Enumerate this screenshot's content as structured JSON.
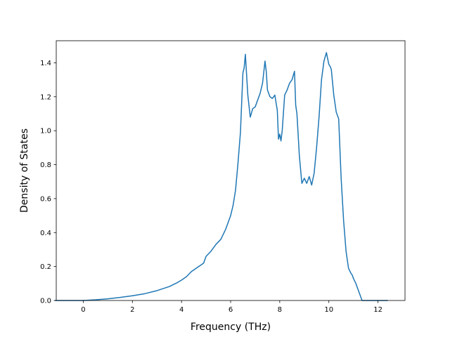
{
  "chart_data": {
    "type": "line",
    "title": "",
    "xlabel": "Frequency (THz)",
    "ylabel": "Density of States",
    "xlim": [
      -1.1,
      13.1
    ],
    "ylim": [
      0.0,
      1.53
    ],
    "xticks": [
      0,
      2,
      4,
      6,
      8,
      10,
      12
    ],
    "yticks": [
      0.0,
      0.2,
      0.4,
      0.6,
      0.8,
      1.0,
      1.2,
      1.4
    ],
    "grid": false,
    "line_color": "#1f77b4",
    "series": [
      {
        "x": [
          -1.15,
          0.0,
          0.5,
          1.0,
          1.5,
          2.0,
          2.5,
          3.0,
          3.5,
          3.8,
          4.0,
          4.2,
          4.3,
          4.4,
          4.6,
          4.8,
          4.9,
          5.0,
          5.2,
          5.4,
          5.6,
          5.8,
          5.9,
          6.0,
          6.1,
          6.2,
          6.3,
          6.4,
          6.5,
          6.55,
          6.6,
          6.7,
          6.8,
          6.9,
          7.0,
          7.2,
          7.3,
          7.4,
          7.45,
          7.5,
          7.6,
          7.7,
          7.8,
          7.9,
          7.95,
          8.0,
          8.05,
          8.1,
          8.2,
          8.3,
          8.4,
          8.5,
          8.6,
          8.65,
          8.7,
          8.8,
          8.9,
          9.0,
          9.1,
          9.2,
          9.3,
          9.4,
          9.5,
          9.6,
          9.7,
          9.8,
          9.9,
          10.0,
          10.05,
          10.1,
          10.2,
          10.3,
          10.4,
          10.5,
          10.6,
          10.7,
          10.8,
          10.9,
          10.95,
          11.0,
          11.1,
          11.2,
          11.3,
          11.35,
          11.4,
          11.6,
          12.0,
          12.4
        ],
        "y": [
          0.0,
          0.0,
          0.004,
          0.01,
          0.018,
          0.028,
          0.04,
          0.058,
          0.082,
          0.103,
          0.12,
          0.14,
          0.155,
          0.17,
          0.19,
          0.21,
          0.22,
          0.26,
          0.29,
          0.33,
          0.36,
          0.42,
          0.46,
          0.5,
          0.56,
          0.65,
          0.81,
          0.99,
          1.34,
          1.37,
          1.45,
          1.21,
          1.08,
          1.13,
          1.14,
          1.22,
          1.28,
          1.41,
          1.35,
          1.24,
          1.2,
          1.19,
          1.21,
          1.12,
          0.95,
          0.98,
          0.94,
          1.0,
          1.21,
          1.24,
          1.28,
          1.3,
          1.35,
          1.15,
          1.1,
          0.85,
          0.69,
          0.72,
          0.69,
          0.73,
          0.68,
          0.75,
          0.9,
          1.08,
          1.3,
          1.41,
          1.46,
          1.39,
          1.38,
          1.36,
          1.21,
          1.11,
          1.07,
          0.72,
          0.47,
          0.29,
          0.19,
          0.16,
          0.15,
          0.13,
          0.1,
          0.06,
          0.02,
          0.0,
          0.0,
          0.0,
          0.0,
          0.0
        ]
      }
    ]
  }
}
